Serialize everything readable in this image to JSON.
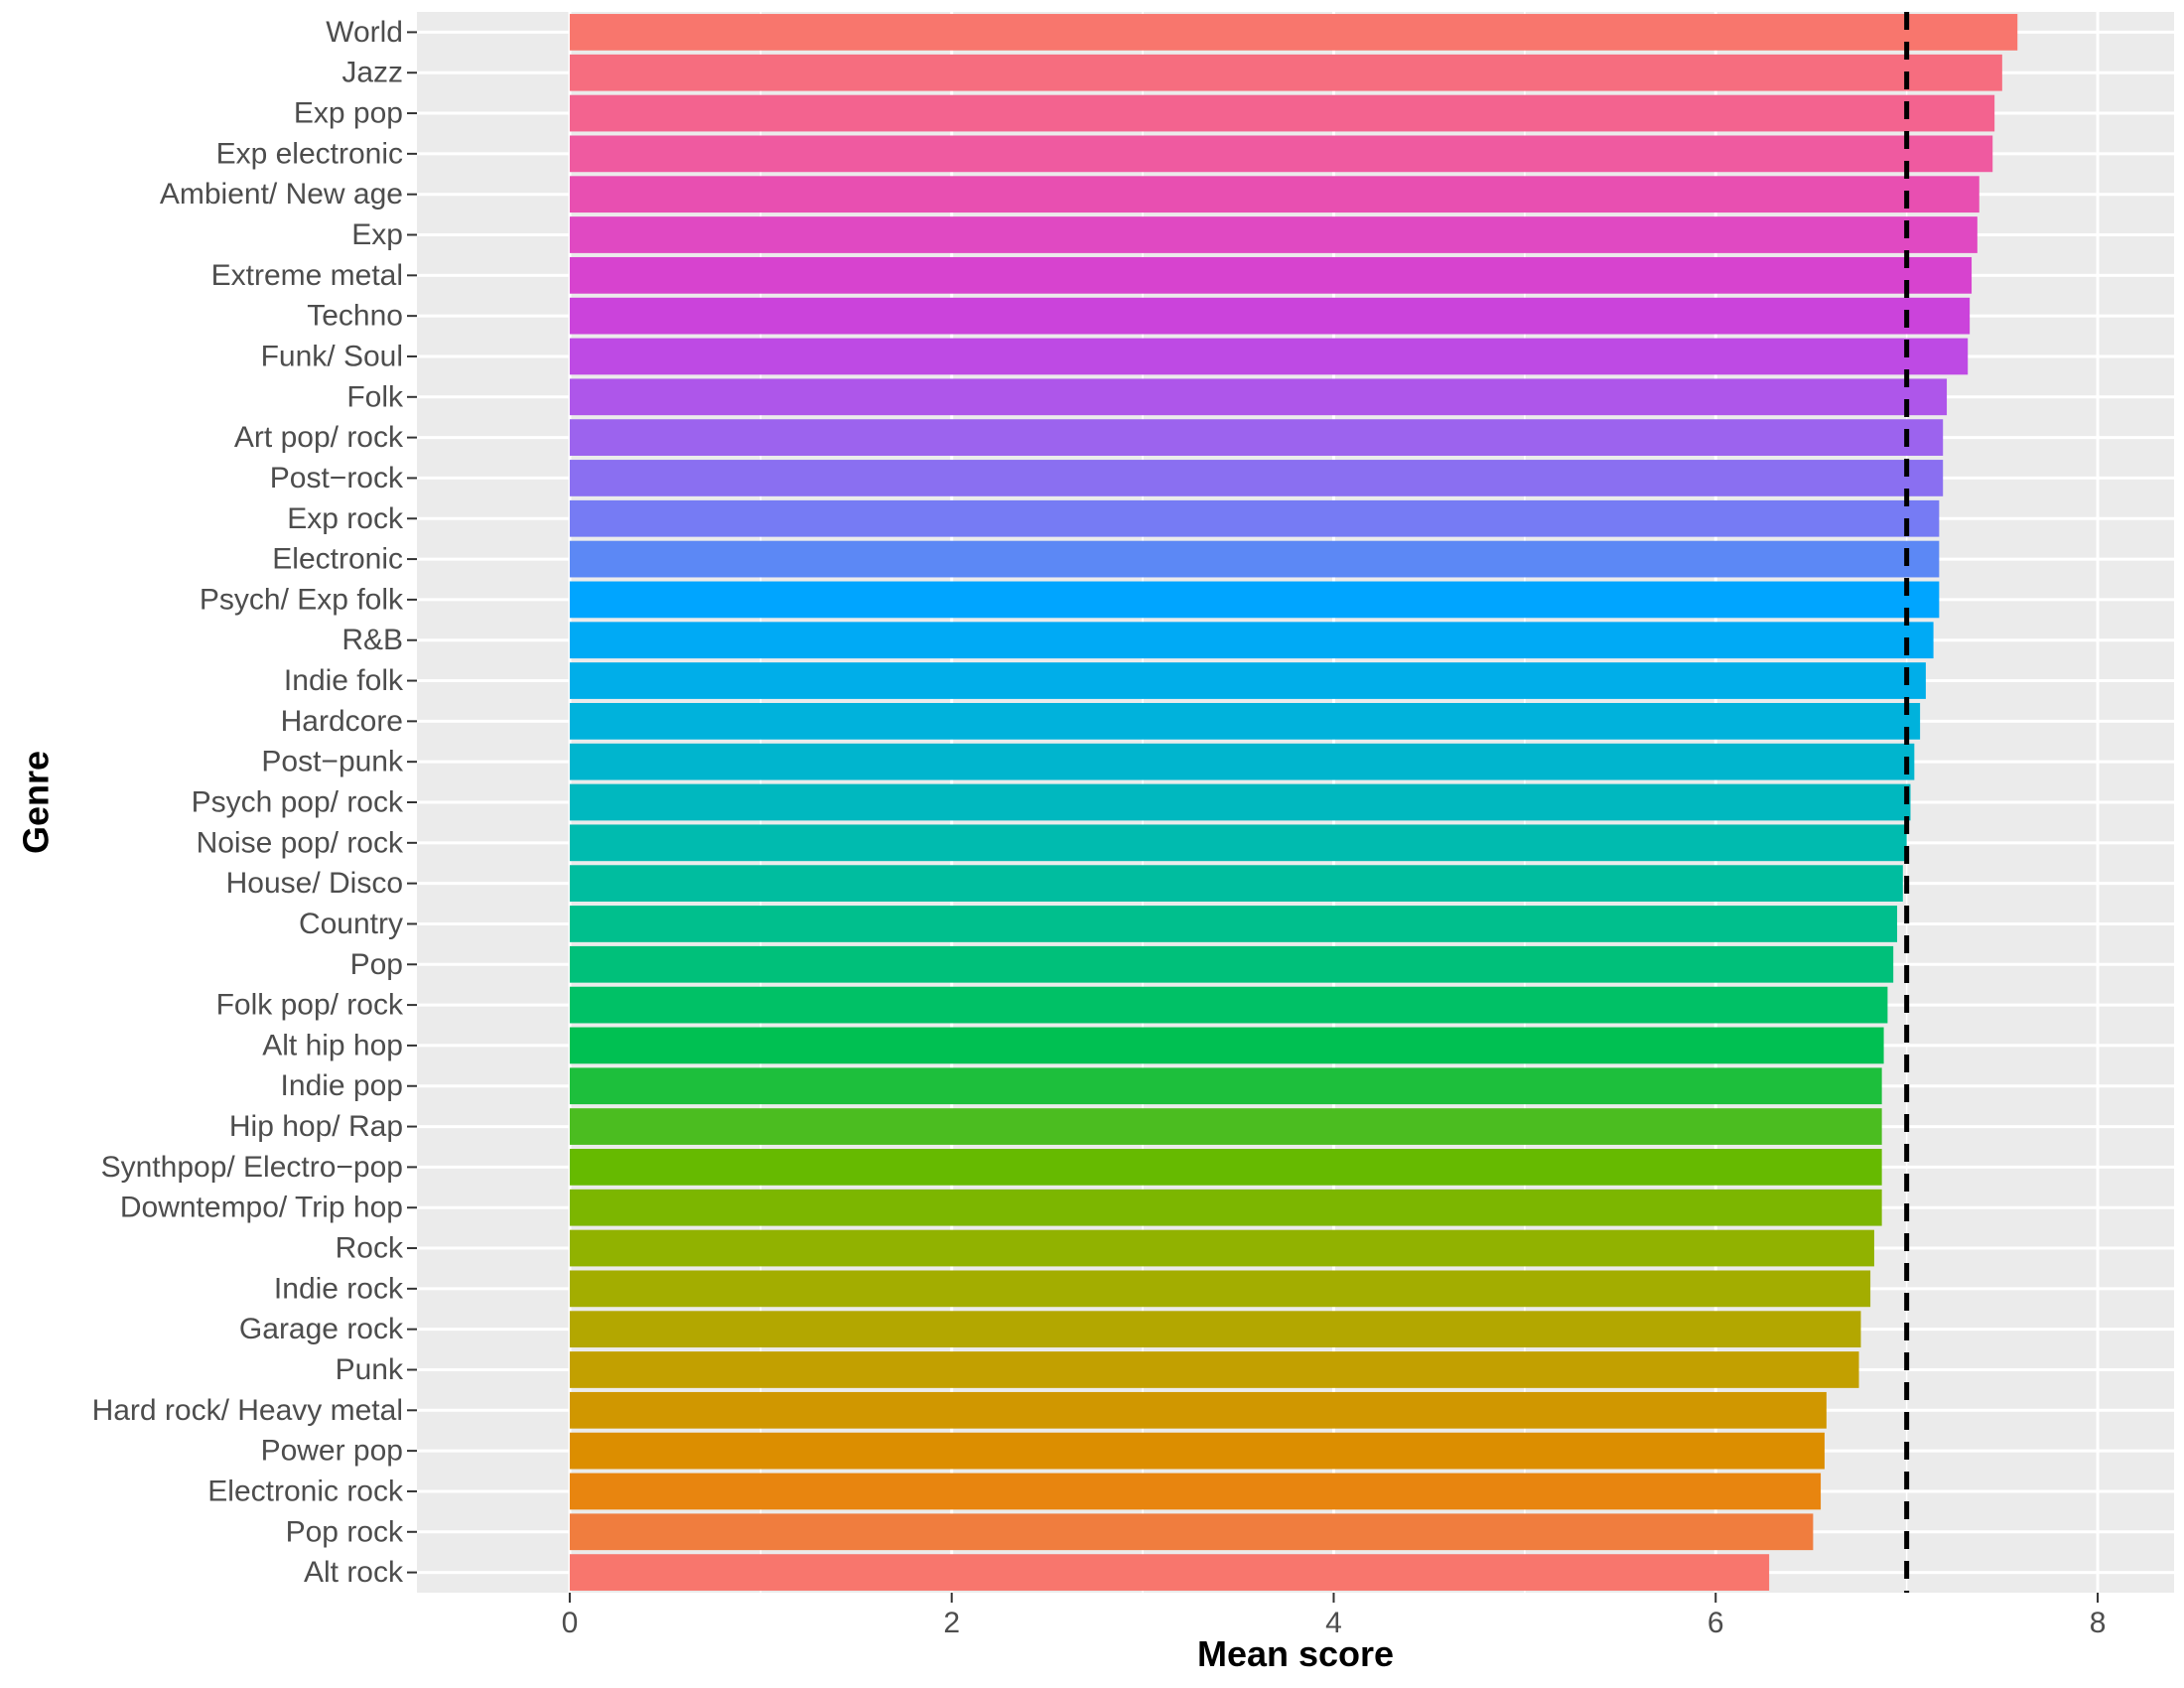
{
  "chart_data": {
    "type": "bar",
    "orientation": "horizontal",
    "title": "",
    "xlabel": "Mean score",
    "ylabel": "Genre",
    "xlim": [
      -0.8,
      8.4
    ],
    "x_ticks": [
      0,
      2,
      4,
      6,
      8
    ],
    "grid": true,
    "reference_line": {
      "value": 7.0,
      "style": "dashed",
      "color": "#000000"
    },
    "categories": [
      "World",
      "Jazz",
      "Exp pop",
      "Exp electronic",
      "Ambient/ New age",
      "Exp",
      "Extreme metal",
      "Techno",
      "Funk/ Soul",
      "Folk",
      "Art pop/ rock",
      "Post−rock",
      "Exp rock",
      "Electronic",
      "Psych/ Exp folk",
      "R&B",
      "Indie folk",
      "Hardcore",
      "Post−punk",
      "Psych pop/ rock",
      "Noise pop/ rock",
      "House/ Disco",
      "Country",
      "Pop",
      "Folk pop/ rock",
      "Alt hip hop",
      "Indie pop",
      "Hip hop/ Rap",
      "Synthpop/ Electro−pop",
      "Downtempo/ Trip hop",
      "Rock",
      "Indie rock",
      "Garage rock",
      "Punk",
      "Hard rock/ Heavy metal",
      "Power pop",
      "Electronic rock",
      "Pop rock",
      "Alt rock"
    ],
    "values": [
      7.58,
      7.5,
      7.46,
      7.45,
      7.38,
      7.37,
      7.34,
      7.33,
      7.32,
      7.21,
      7.19,
      7.19,
      7.17,
      7.17,
      7.17,
      7.14,
      7.1,
      7.07,
      7.04,
      7.02,
      7.0,
      6.98,
      6.95,
      6.93,
      6.9,
      6.88,
      6.87,
      6.87,
      6.87,
      6.87,
      6.83,
      6.81,
      6.76,
      6.75,
      6.58,
      6.57,
      6.55,
      6.51,
      6.28
    ],
    "colors": [
      "#F8766D",
      "#F66D7F",
      "#F3638F",
      "#EF5AA0",
      "#E84FB1",
      "#E049C2",
      "#D743CF",
      "#CB43DB",
      "#BE4AE4",
      "#AE56EA",
      "#9C63EE",
      "#8A6FF1",
      "#767BF4",
      "#5C88F5",
      "#00A5FF",
      "#00AAF5",
      "#00AEE9",
      "#00B2DC",
      "#00B5CE",
      "#00B8BF",
      "#00BBAF",
      "#00BD9F",
      "#00BF8D",
      "#00C07A",
      "#00C166",
      "#00C052",
      "#1DBF3C",
      "#4BBD20",
      "#66BA00",
      "#7CB600",
      "#91B200",
      "#A3AD00",
      "#B3A700",
      "#C2A000",
      "#D09700",
      "#DC8E00",
      "#E8850F",
      "#F07D3E",
      "#F8766D"
    ]
  }
}
